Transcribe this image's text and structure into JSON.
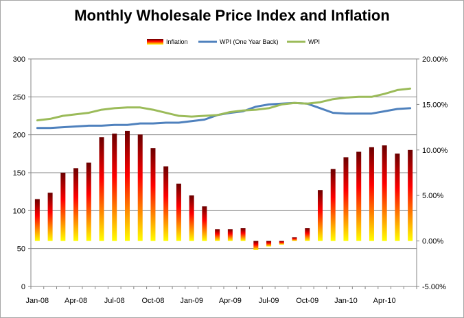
{
  "chart_data": {
    "type": "bar-line-combo",
    "title": "Monthly Wholesale Price Index and Inflation",
    "legend": {
      "placement": "top",
      "entries": [
        "Inflation",
        "WPI (One Year Back)",
        "WPI"
      ]
    },
    "x_tick_labels": [
      "Jan-08",
      "Apr-08",
      "Jul-08",
      "Oct-08",
      "Jan-09",
      "Apr-09",
      "Jul-09",
      "Oct-09",
      "Jan-10",
      "Apr-10"
    ],
    "x_tick_months": [
      0,
      3,
      6,
      9,
      12,
      15,
      18,
      21,
      24,
      27
    ],
    "categories": [
      "Jan-08",
      "Feb-08",
      "Mar-08",
      "Apr-08",
      "May-08",
      "Jun-08",
      "Jul-08",
      "Aug-08",
      "Sep-08",
      "Oct-08",
      "Nov-08",
      "Dec-08",
      "Jan-09",
      "Feb-09",
      "Mar-09",
      "Apr-09",
      "May-09",
      "Jun-09",
      "Jul-09",
      "Aug-09",
      "Sep-09",
      "Oct-09",
      "Nov-09",
      "Dec-09",
      "Jan-10",
      "Feb-10",
      "Mar-10",
      "Apr-10",
      "May-10",
      "Jun-10"
    ],
    "y_left": {
      "min": 0,
      "max": 300,
      "ticks": [
        "0",
        "50",
        "100",
        "150",
        "200",
        "250",
        "300"
      ]
    },
    "y_right": {
      "min": -0.05,
      "max": 0.2,
      "ticks": [
        "-5.00%",
        "0.00%",
        "5.00%",
        "10.00%",
        "15.00%",
        "20.00%"
      ]
    },
    "grid": "horizontal",
    "series": [
      {
        "name": "Inflation",
        "axis": "right",
        "kind": "bar",
        "values": [
          0.046,
          0.053,
          0.075,
          0.08,
          0.086,
          0.114,
          0.118,
          0.121,
          0.117,
          0.102,
          0.082,
          0.063,
          0.05,
          0.038,
          0.013,
          0.013,
          0.014,
          -0.01,
          -0.006,
          -0.004,
          0.004,
          0.014,
          0.056,
          0.079,
          0.092,
          0.098,
          0.103,
          0.105,
          0.096,
          0.1
        ]
      },
      {
        "name": "WPI (One Year Back)",
        "axis": "left",
        "kind": "line",
        "values": [
          209,
          209,
          210,
          211,
          212,
          212,
          213,
          213,
          215,
          215,
          216,
          216,
          218,
          220,
          226,
          229,
          231,
          237,
          240,
          241,
          242,
          241,
          235,
          229,
          228,
          228,
          228,
          231,
          234,
          235
        ]
      },
      {
        "name": "WPI",
        "axis": "left",
        "kind": "line",
        "values": [
          219,
          221,
          225,
          227,
          229,
          233,
          235,
          236,
          236,
          233,
          229,
          225,
          224,
          225,
          226,
          230,
          232,
          233,
          235,
          240,
          242,
          241,
          243,
          247,
          249,
          250,
          250,
          254,
          259,
          261
        ]
      }
    ],
    "colors": {
      "inflation_top": "#6b0000",
      "inflation_mid": "#ff0000",
      "inflation_bottom": "#ffff00",
      "wpi_one_year_back": "#4f81bd",
      "wpi": "#9bbb59",
      "gridline": "#868686"
    }
  }
}
